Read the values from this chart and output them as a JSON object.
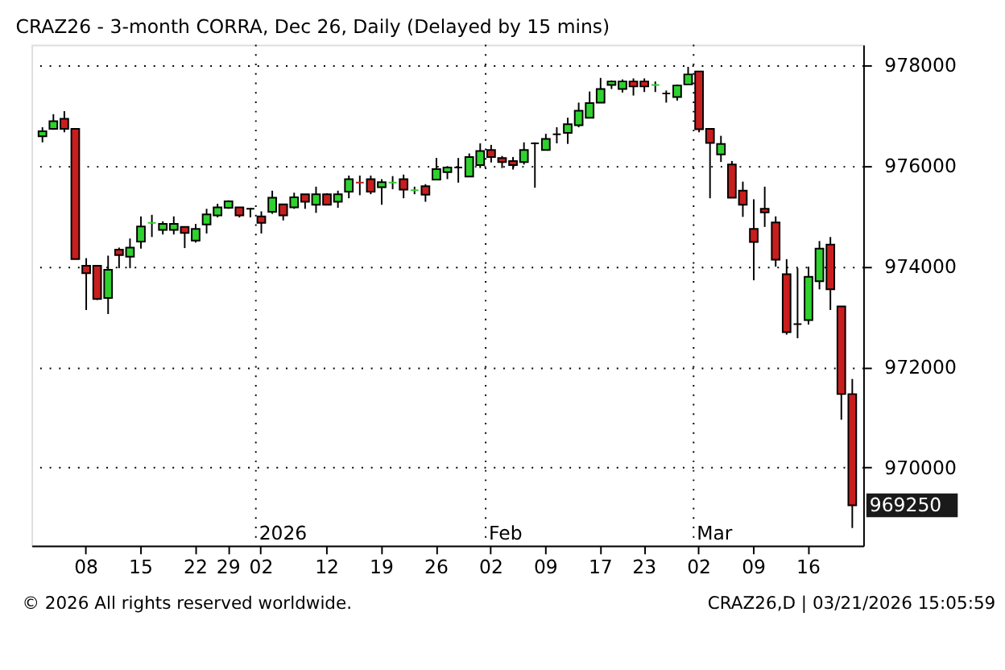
{
  "chart_data": {
    "type": "candlestick",
    "title": "CRAZ26 - 3-month CORRA, Dec 26, Daily (Delayed by 15 mins)",
    "categories": [
      null,
      null,
      null,
      null,
      "08",
      null,
      null,
      null,
      null,
      "15",
      null,
      null,
      null,
      null,
      "22",
      null,
      null,
      "29",
      null,
      null,
      "02",
      null,
      null,
      null,
      null,
      null,
      "12",
      null,
      null,
      null,
      null,
      "19",
      null,
      null,
      null,
      null,
      "26",
      null,
      null,
      null,
      null,
      "02",
      null,
      null,
      null,
      null,
      "09",
      null,
      null,
      null,
      null,
      "17",
      null,
      null,
      null,
      "23",
      null,
      null,
      null,
      null,
      "02",
      null,
      null,
      null,
      null,
      "09",
      null,
      null,
      null,
      null,
      "16",
      null,
      null,
      null,
      null
    ],
    "ohlc": [
      [
        976580,
        976760,
        976460,
        976680
      ],
      [
        976730,
        977020,
        976710,
        976880
      ],
      [
        976930,
        977080,
        976660,
        976730
      ],
      [
        976730,
        976730,
        974140,
        974140
      ],
      [
        974010,
        974160,
        973130,
        973860
      ],
      [
        974010,
        974010,
        973330,
        973350
      ],
      [
        973370,
        974210,
        973050,
        973930
      ],
      [
        974330,
        974370,
        973960,
        974220
      ],
      [
        974190,
        974550,
        973960,
        974370
      ],
      [
        974490,
        974990,
        974350,
        974790
      ],
      [
        974860,
        975020,
        974580,
        974860
      ],
      [
        974720,
        974890,
        974630,
        974840
      ],
      [
        974720,
        974990,
        974630,
        974840
      ],
      [
        974780,
        974780,
        974360,
        974660
      ],
      [
        974510,
        974840,
        974470,
        974740
      ],
      [
        974830,
        975140,
        974650,
        975030
      ],
      [
        975010,
        975240,
        974970,
        975170
      ],
      [
        975160,
        975310,
        975140,
        975290
      ],
      [
        975170,
        975170,
        974970,
        975010
      ],
      [
        975140,
        975160,
        974970,
        975140
      ],
      [
        974990,
        975090,
        974650,
        974860
      ],
      [
        975080,
        975500,
        975040,
        975360
      ],
      [
        975230,
        975230,
        974910,
        975010
      ],
      [
        975170,
        975460,
        975140,
        975370
      ],
      [
        975430,
        975430,
        975140,
        975280
      ],
      [
        975220,
        975580,
        975060,
        975430
      ],
      [
        975430,
        975450,
        975210,
        975220
      ],
      [
        975280,
        975500,
        975160,
        975430
      ],
      [
        975480,
        975800,
        975350,
        975730
      ],
      [
        975660,
        975800,
        975410,
        975660
      ],
      [
        975730,
        975800,
        975430,
        975480
      ],
      [
        975570,
        975730,
        975220,
        975670
      ],
      [
        975660,
        975790,
        975530,
        975660
      ],
      [
        975730,
        975820,
        975350,
        975520
      ],
      [
        975510,
        975580,
        975430,
        975510
      ],
      [
        975590,
        975630,
        975280,
        975420
      ],
      [
        975720,
        976150,
        975720,
        975930
      ],
      [
        975870,
        975970,
        975730,
        975960
      ],
      [
        975960,
        976150,
        975660,
        975960
      ],
      [
        975780,
        976240,
        975780,
        976170
      ],
      [
        976010,
        976440,
        975950,
        976290
      ],
      [
        976310,
        976410,
        976060,
        976170
      ],
      [
        976150,
        976190,
        975950,
        976070
      ],
      [
        976090,
        976170,
        975920,
        976010
      ],
      [
        976070,
        976460,
        976020,
        976310
      ],
      [
        976440,
        976460,
        975560,
        976440
      ],
      [
        976310,
        976630,
        976310,
        976530
      ],
      [
        976620,
        976760,
        976440,
        976620
      ],
      [
        976650,
        976950,
        976430,
        976820
      ],
      [
        976800,
        977250,
        976760,
        977090
      ],
      [
        976950,
        977470,
        976950,
        977240
      ],
      [
        977250,
        977740,
        977250,
        977520
      ],
      [
        977600,
        977690,
        977520,
        977670
      ],
      [
        977520,
        977710,
        977450,
        977670
      ],
      [
        977670,
        977730,
        977390,
        977570
      ],
      [
        977670,
        977730,
        977460,
        977570
      ],
      [
        977600,
        977670,
        977460,
        977600
      ],
      [
        977430,
        977490,
        977250,
        977430
      ],
      [
        977360,
        977610,
        977290,
        977590
      ],
      [
        977610,
        977960,
        977610,
        977810
      ],
      [
        977870,
        977870,
        976660,
        976720
      ],
      [
        976730,
        976730,
        975350,
        976450
      ],
      [
        976220,
        976590,
        976070,
        976430
      ],
      [
        976020,
        976090,
        975360,
        975360
      ],
      [
        975500,
        975680,
        974980,
        975220
      ],
      [
        974740,
        975330,
        973720,
        974480
      ],
      [
        975140,
        975580,
        974780,
        975070
      ],
      [
        974870,
        974990,
        973990,
        974130
      ],
      [
        973840,
        974140,
        972640,
        972690
      ],
      [
        972850,
        973960,
        972570,
        972850
      ],
      [
        972930,
        973990,
        972840,
        973790
      ],
      [
        973700,
        974500,
        973540,
        974350
      ],
      [
        974430,
        974580,
        973130,
        973540
      ],
      [
        973200,
        973200,
        970950,
        971460
      ],
      [
        971460,
        971760,
        968800,
        969250
      ]
    ],
    "colors": [
      "#2fd12f",
      "#2fd12f",
      "#c81e1e",
      "#c81e1e",
      "#c81e1e",
      "#c81e1e",
      "#2fd12f",
      "#c81e1e",
      "#2fd12f",
      "#2fd12f",
      "#2fd12f",
      "#2fd12f",
      "#2fd12f",
      "#c81e1e",
      "#2fd12f",
      "#2fd12f",
      "#2fd12f",
      "#2fd12f",
      "#c81e1e",
      "#000000",
      "#c81e1e",
      "#2fd12f",
      "#c81e1e",
      "#2fd12f",
      "#c81e1e",
      "#2fd12f",
      "#c81e1e",
      "#2fd12f",
      "#2fd12f",
      "#c81e1e",
      "#c81e1e",
      "#2fd12f",
      "#2fd12f",
      "#c81e1e",
      "#2fd12f",
      "#c81e1e",
      "#2fd12f",
      "#2fd12f",
      "#000000",
      "#2fd12f",
      "#2fd12f",
      "#c81e1e",
      "#c81e1e",
      "#c81e1e",
      "#2fd12f",
      "#000000",
      "#2fd12f",
      "#000000",
      "#2fd12f",
      "#2fd12f",
      "#2fd12f",
      "#2fd12f",
      "#2fd12f",
      "#2fd12f",
      "#c81e1e",
      "#c81e1e",
      "#2fd12f",
      "#000000",
      "#2fd12f",
      "#2fd12f",
      "#c81e1e",
      "#c81e1e",
      "#2fd12f",
      "#c81e1e",
      "#c81e1e",
      "#c81e1e",
      "#c81e1e",
      "#c81e1e",
      "#c81e1e",
      "#000000",
      "#2fd12f",
      "#2fd12f",
      "#c81e1e",
      "#c81e1e",
      "#c81e1e"
    ],
    "ylim": [
      968450,
      978400
    ],
    "yticks": [
      970000,
      972000,
      974000,
      976000,
      978000
    ],
    "grid": "y",
    "annotations": [
      "2026",
      "Feb",
      "Mar",
      "969250",
      "© 2026 All rights reserved worldwide.",
      "CRAZ26,D | 03/21/2026 15:05:59"
    ]
  }
}
